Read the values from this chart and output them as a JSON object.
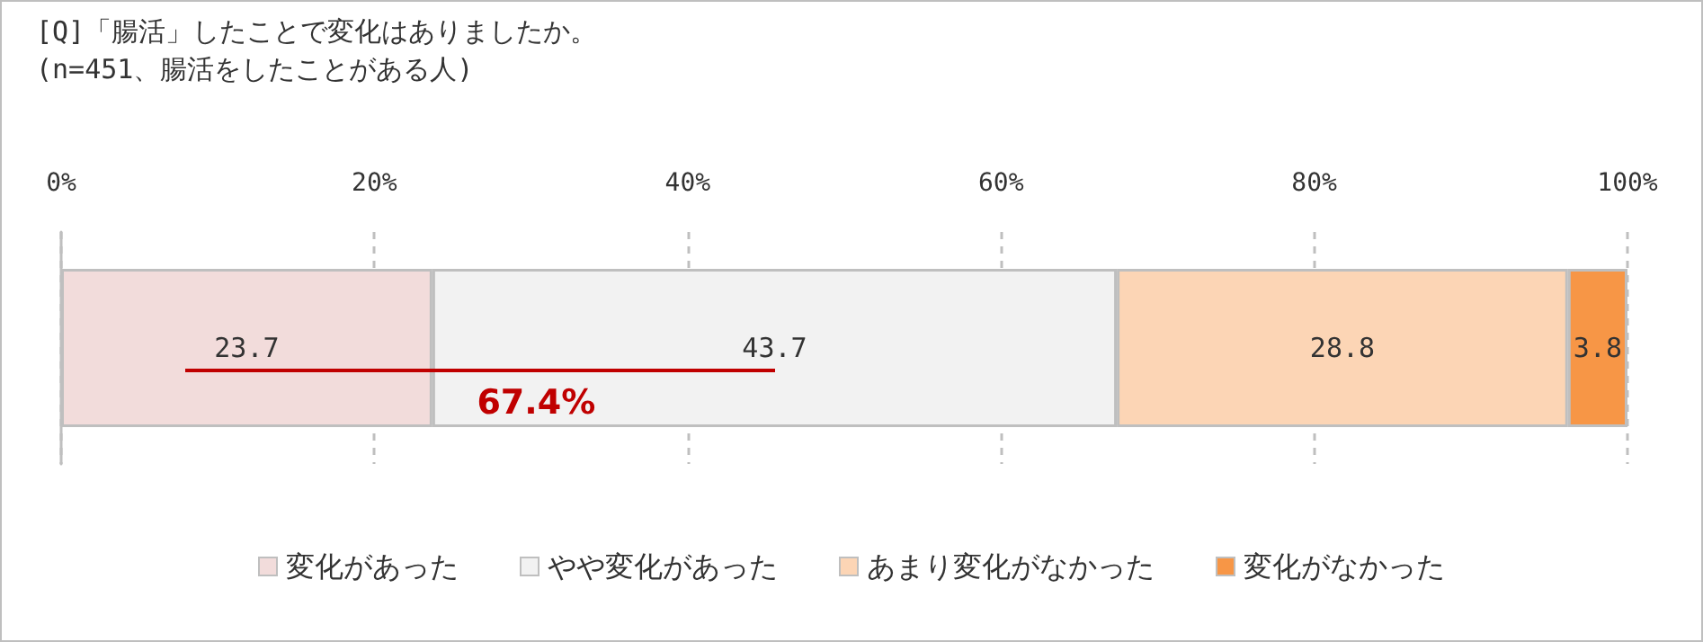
{
  "chart_data": {
    "type": "bar",
    "orientation": "horizontal",
    "stacked": true,
    "title": "[Q]「腸活」したことで変化はありましたか。",
    "subtitle": "(n=451、腸活をしたことがある人)",
    "categories": [
      null
    ],
    "series": [
      {
        "name": "変化があった",
        "color": "#f2dcdb",
        "values": [
          23.7
        ]
      },
      {
        "name": "やや変化があった",
        "color": "#f2f2f2",
        "values": [
          43.7
        ]
      },
      {
        "name": "あまり変化がなかった",
        "color": "#fcd5b5",
        "values": [
          28.8
        ]
      },
      {
        "name": "変化がなかった",
        "color": "#f79646",
        "values": [
          3.8
        ]
      }
    ],
    "xlim": [
      0,
      100
    ],
    "xticks": [
      {
        "value": 0,
        "label": "0%"
      },
      {
        "value": 20,
        "label": "20%"
      },
      {
        "value": 40,
        "label": "40%"
      },
      {
        "value": 60,
        "label": "60%"
      },
      {
        "value": 80,
        "label": "80%"
      },
      {
        "value": 100,
        "label": "100%"
      }
    ],
    "grid": "x",
    "legend": "bottom",
    "data_labels": true,
    "annotations": [
      "67.4%"
    ]
  }
}
